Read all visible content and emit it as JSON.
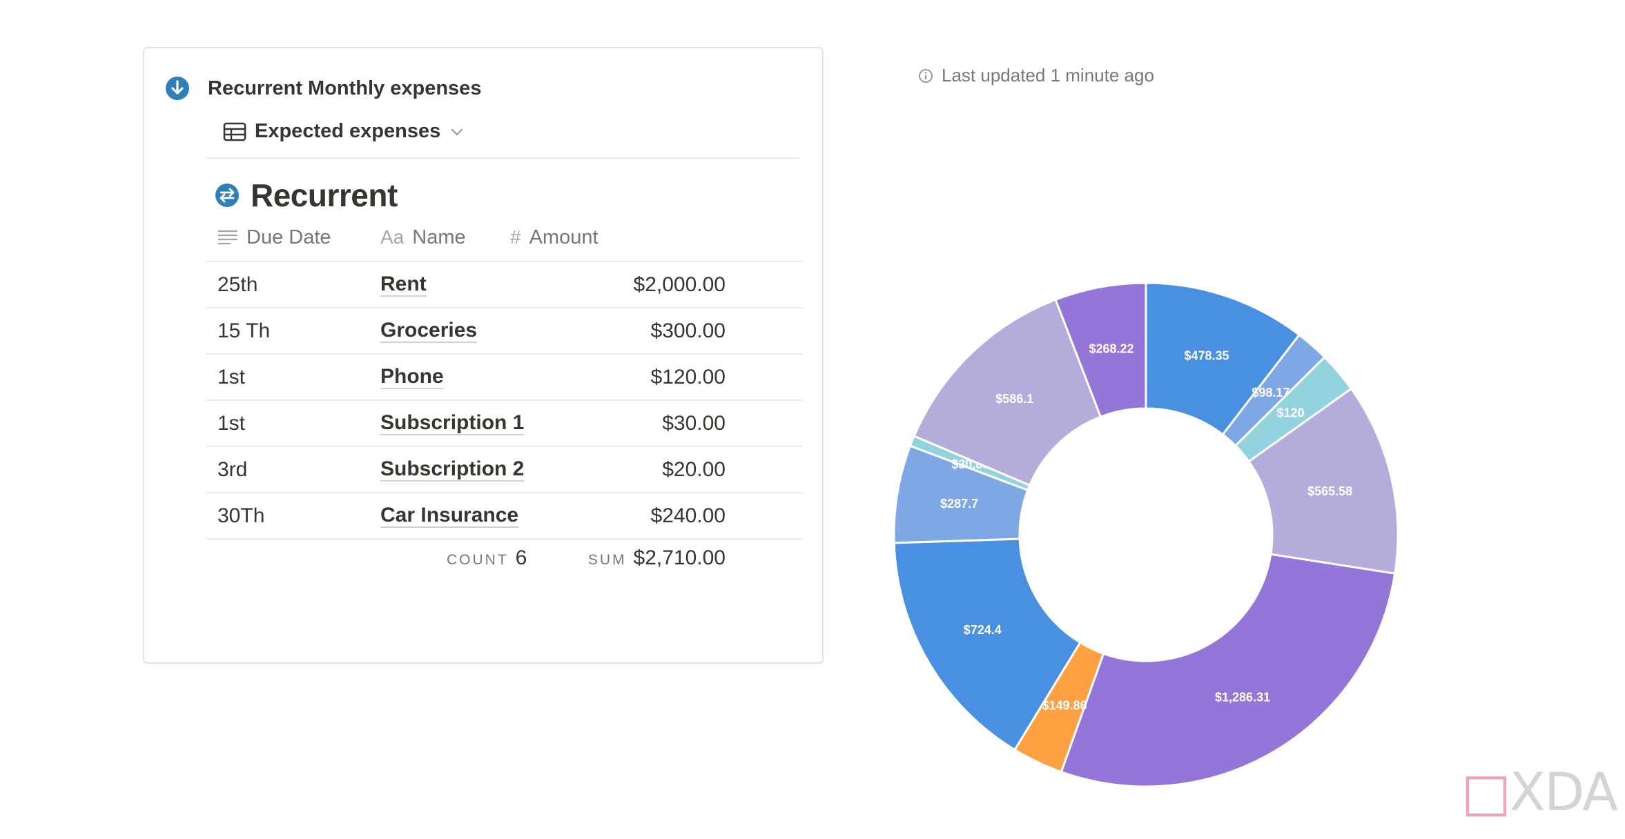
{
  "card": {
    "title": "Recurrent Monthly expenses",
    "view_label": "Expected expenses",
    "group_title": "Recurrent"
  },
  "table": {
    "columns": [
      {
        "label": "Due Date",
        "icon": "text-lines-icon"
      },
      {
        "label": "Name",
        "icon": "Aa"
      },
      {
        "label": "Amount",
        "icon": "#"
      }
    ],
    "rows": [
      {
        "due": "25th",
        "name": "Rent",
        "amount": "$2,000.00"
      },
      {
        "due": "15 Th",
        "name": "Groceries",
        "amount": "$300.00"
      },
      {
        "due": "1st",
        "name": "Phone",
        "amount": "$120.00"
      },
      {
        "due": "1st",
        "name": "Subscription 1",
        "amount": "$30.00"
      },
      {
        "due": "3rd",
        "name": "Subscription 2",
        "amount": "$20.00"
      },
      {
        "due": "30Th",
        "name": "Car Insurance",
        "amount": "$240.00"
      }
    ],
    "count_label": "COUNT",
    "count_value": "6",
    "sum_label": "SUM",
    "sum_value": "$2,710.00"
  },
  "status": {
    "last_updated": "Last updated 1 minute ago"
  },
  "watermark": {
    "prefix": "□",
    "text": "XDA"
  },
  "chart_data": {
    "type": "pie",
    "style": "donut",
    "slices": [
      {
        "label": "$478.35",
        "value": 478.35,
        "color": "#4a90e2"
      },
      {
        "label": "$98.17",
        "value": 98.17,
        "color": "#7ea8e3"
      },
      {
        "label": "$120",
        "value": 120,
        "color": "#93d3de"
      },
      {
        "label": "$565.58",
        "value": 565.58,
        "color": "#b4acda"
      },
      {
        "label": "$1,286.31",
        "value": 1286.31,
        "color": "#9575d8"
      },
      {
        "label": "$149.86",
        "value": 149.86,
        "color": "#ffa143"
      },
      {
        "label": "$724.4",
        "value": 724.4,
        "color": "#4a90e2"
      },
      {
        "label": "$287.7",
        "value": 287.7,
        "color": "#7ea8e3"
      },
      {
        "label": "$30.68",
        "value": 30.68,
        "color": "#93d3de"
      },
      {
        "label": "$586.1",
        "value": 586.1,
        "color": "#b4acda"
      },
      {
        "label": "$268.22",
        "value": 268.22,
        "color": "#9575d8"
      }
    ]
  }
}
